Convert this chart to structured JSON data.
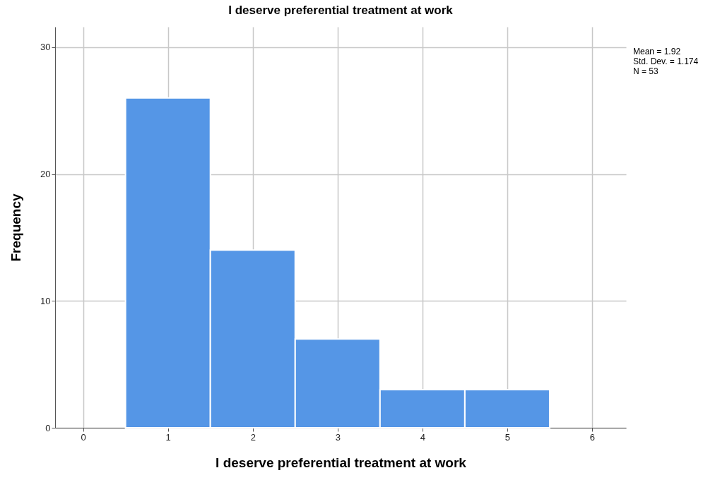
{
  "chart_data": {
    "type": "histogram",
    "title": "I deserve preferential treatment at work",
    "xlabel": "I deserve preferential treatment at work",
    "ylabel": "Frequency",
    "bins": [
      0.5,
      1.5,
      2.5,
      3.5,
      4.5,
      5.5
    ],
    "values": [
      26,
      14,
      7,
      3,
      3
    ],
    "color": "#5596e6",
    "xlim": [
      -0.33,
      6.4
    ],
    "xticks": [
      0,
      1,
      2,
      3,
      4,
      5,
      6
    ],
    "ylim": [
      0,
      31.6
    ],
    "yticks": [
      0,
      10,
      20,
      30
    ],
    "grid": true,
    "annotations": [
      "Mean = 1.92",
      "Std. Dev. = 1.174",
      "N = 53"
    ]
  }
}
